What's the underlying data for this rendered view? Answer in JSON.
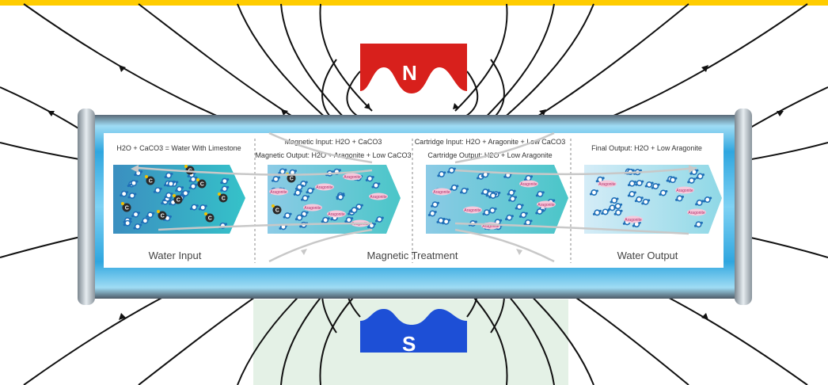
{
  "colors": {
    "top_bar": "#ffcc00",
    "north_pole": "#d8201c",
    "south_pole": "#1d4fd6",
    "tube_blue": "#38aee0",
    "field_line": "#111111",
    "panel_bg": "#ffffff",
    "green_zone": "#e4f1e6"
  },
  "magnets": {
    "north_label": "N",
    "south_label": "S"
  },
  "stages": [
    {
      "header_lines": [
        "H2O + CaCO3 = Water With Limestone"
      ],
      "title": "Water Input"
    },
    {
      "header_lines": [
        "Magnetic Input: H2O + CaCO3",
        "Magnetic Output: H2O + Aragonite + Low CaCO3"
      ],
      "title": ""
    },
    {
      "header_lines": [
        "Cartridge Input: H2O + Aragonite + Low CaCO3",
        "Cartridge Output: H2O + Low Aragonite"
      ],
      "title": ""
    },
    {
      "header_lines": [
        "Final Output: H2O + Low Aragonite"
      ],
      "title": "Water Output"
    }
  ],
  "center_title": "Magnetic Treatment",
  "particle_labels": {
    "aragonite": "Aragonite",
    "carbon": "C"
  }
}
